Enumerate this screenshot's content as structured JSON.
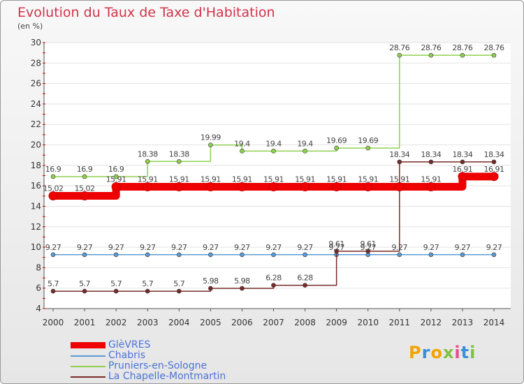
{
  "title": "Evolution du Taux de Taxe d'Habitation",
  "subtitle": "(en %)",
  "chart_data": {
    "type": "line",
    "title": "Evolution du Taux de Taxe d'Habitation",
    "subtitle": "(en %)",
    "ylim": [
      4,
      30
    ],
    "yticks": [
      "4",
      "6",
      "8",
      "10",
      "12",
      "14",
      "16",
      "18",
      "20",
      "22",
      "24",
      "26",
      "28",
      "30"
    ],
    "grid": "horizontal",
    "legend": "bottom-left",
    "categories": [
      "2000",
      "2001",
      "2002",
      "2003",
      "2004",
      "2005",
      "2006",
      "2007",
      "2008",
      "2009",
      "2010",
      "2011",
      "2012",
      "2013",
      "2014"
    ],
    "series": [
      {
        "name": "GlèVRES",
        "color": "#ee0000",
        "values": [
          15.02,
          15.02,
          15.91,
          15.91,
          15.91,
          15.91,
          15.91,
          15.91,
          15.91,
          15.91,
          15.91,
          15.91,
          15.91,
          16.91,
          16.91
        ],
        "labels": [
          "15.02",
          "15.02",
          "15.91",
          "15.91",
          "15.91",
          "15.91",
          "15.91",
          "15.91",
          "15.91",
          "15.91",
          "15.91",
          "15.91",
          "15.91",
          "16.91",
          "16.91"
        ]
      },
      {
        "name": "Chabris",
        "color": "#5b9bd5",
        "values": [
          9.27,
          9.27,
          9.27,
          9.27,
          9.27,
          9.27,
          9.27,
          9.27,
          9.27,
          9.27,
          9.27,
          9.27,
          9.27,
          9.27,
          9.27
        ],
        "labels": [
          "9.27",
          "9.27",
          "9.27",
          "9.27",
          "9.27",
          "9.27",
          "9.27",
          "9.27",
          "9.27",
          "9.27",
          "9.27",
          "9.27",
          "9.27",
          "9.27",
          "9.27"
        ]
      },
      {
        "name": "Pruniers-en-Sologne",
        "color": "#8fd14f",
        "values": [
          16.9,
          16.9,
          16.9,
          18.38,
          18.38,
          19.99,
          19.4,
          19.4,
          19.4,
          19.69,
          19.69,
          28.76,
          28.76,
          28.76,
          28.76
        ],
        "labels": [
          "16.9",
          "16.9",
          "16.9",
          "18.38",
          "18.38",
          "19.99",
          "19.4",
          "19.4",
          "19.4",
          "19.69",
          "19.69",
          "28.76",
          "28.76",
          "28.76",
          "28.76"
        ]
      },
      {
        "name": "La Chapelle-Montmartin",
        "color": "#7a2a2a",
        "values": [
          5.7,
          5.7,
          5.7,
          5.7,
          5.7,
          5.98,
          5.98,
          6.28,
          6.28,
          9.61,
          9.61,
          18.34,
          18.34,
          18.34,
          18.34
        ],
        "labels": [
          "5.7",
          "5.7",
          "5.7",
          "5.7",
          "5.7",
          "5.98",
          "5.98",
          "6.28",
          "6.28",
          "9.61",
          "9.61",
          "18.34",
          "18.34",
          "18.34",
          "18.34"
        ]
      }
    ]
  },
  "logo": {
    "letters": [
      "P",
      "r",
      "o",
      "x",
      "i",
      "t",
      "i"
    ],
    "colors": [
      "#f4a300",
      "#3b8fd9",
      "#f4a300",
      "#7fc241",
      "#e84c8b",
      "#3b8fd9",
      "#7fc241"
    ]
  }
}
